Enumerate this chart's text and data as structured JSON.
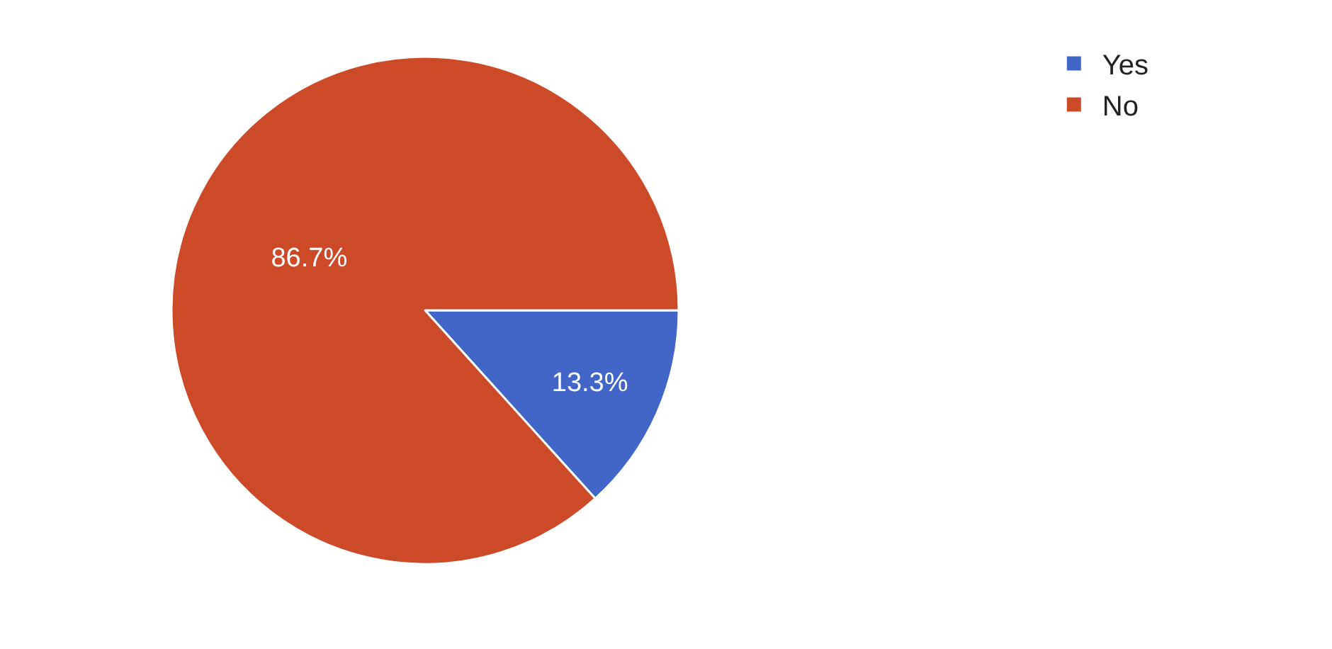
{
  "chart_data": {
    "type": "pie",
    "categories": [
      "Yes",
      "No"
    ],
    "values": [
      13.3,
      86.7
    ],
    "value_labels": [
      "13.3%",
      "86.7%"
    ],
    "colors": [
      "#4166c8",
      "#cc4a28"
    ],
    "legend": "top right"
  }
}
